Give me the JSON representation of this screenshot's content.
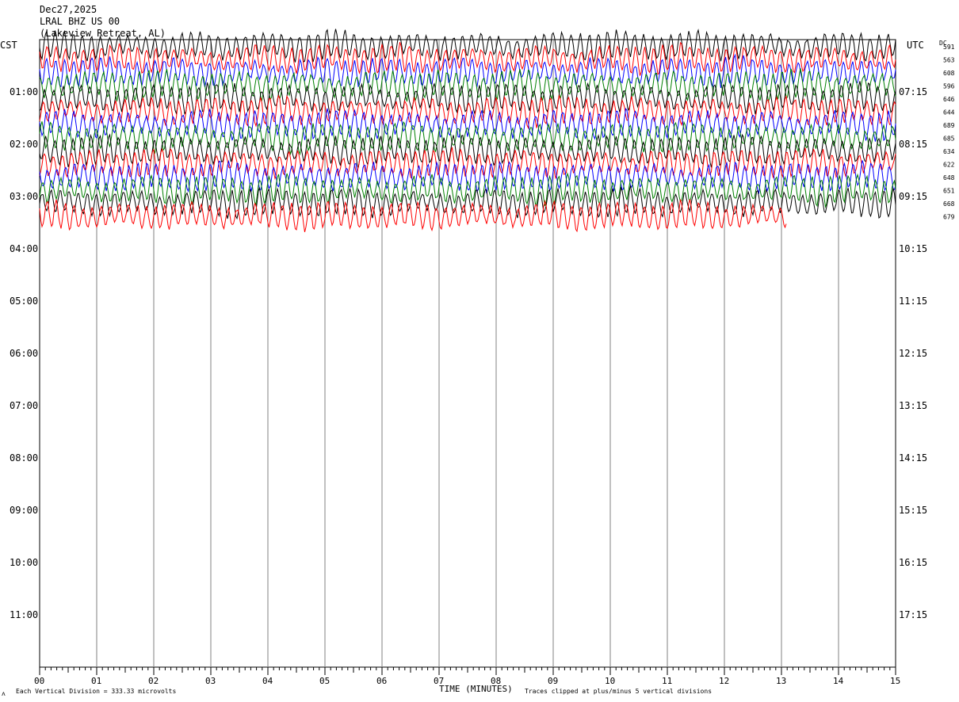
{
  "header": {
    "date": "Dec27,2025",
    "station": "LRAL BHZ US 00",
    "location": "(Lakeview Retreat, AL)"
  },
  "left_timezone": "CST",
  "right_timezone": "UTC",
  "dc_label": "DC",
  "chart_data": {
    "type": "line",
    "title": "",
    "xlabel": "TIME (MINUTES)",
    "xlim": [
      0,
      15
    ],
    "x_ticks": [
      "00",
      "01",
      "02",
      "03",
      "04",
      "05",
      "06",
      "07",
      "08",
      "09",
      "10",
      "11",
      "12",
      "13",
      "14",
      "15"
    ],
    "left_time_labels": [
      "01:00",
      "02:00",
      "03:00",
      "04:00",
      "05:00",
      "06:00",
      "07:00",
      "08:00",
      "09:00",
      "10:00",
      "11:00"
    ],
    "right_time_labels": [
      "07:15",
      "08:15",
      "09:15",
      "10:15",
      "11:15",
      "12:15",
      "13:15",
      "14:15",
      "15:15",
      "16:15",
      "17:15"
    ],
    "dc_offsets": [
      "591",
      "563",
      "608",
      "596",
      "646",
      "644",
      "689",
      "685",
      "634",
      "622",
      "648",
      "651",
      "668",
      "679"
    ],
    "trace_colors": [
      "#000000",
      "#ff0000",
      "#0000ff",
      "#008000"
    ],
    "trace_rows": 14,
    "rows_per_hour": 4,
    "row_minutes": 15,
    "last_trace_end_minute": 13.1
  },
  "footer": {
    "scale": "Each Vertical Division =  333.33 microvolts",
    "clip": "Traces clipped at plus/minus 5 vertical divisions"
  },
  "colors": {
    "grid": "#808080",
    "frame": "#000000"
  }
}
